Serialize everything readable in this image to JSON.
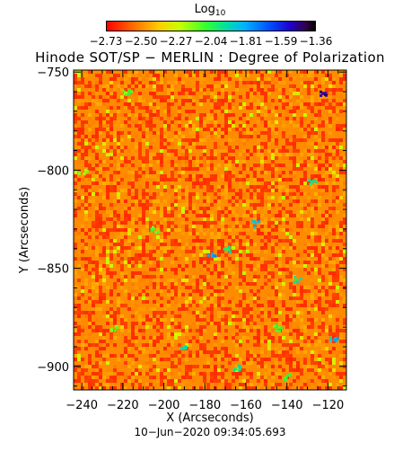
{
  "colorbar": {
    "title_base": "Log",
    "title_sub": "10",
    "tick_labels": [
      "−2.73",
      "−2.50",
      "−2.27",
      "−2.04",
      "−1.81",
      "−1.59",
      "−1.36"
    ],
    "tick_values": [
      -2.73,
      -2.5,
      -2.27,
      -2.04,
      -1.81,
      -1.59,
      -1.36
    ],
    "range": [
      -2.8,
      -1.3
    ]
  },
  "title": "Hinode SOT/SP − MERLIN : Degree of Polarization",
  "date": "10−Jun−2020 09:34:05.693",
  "colors": {
    "background": "#ff8c00",
    "low": "#ff0000",
    "mid": "#ffd000",
    "green": "#33ff33",
    "blue": "#0050ff",
    "dark": "#200040"
  },
  "chart_data": {
    "type": "heatmap",
    "title": "Hinode SOT/SP − MERLIN : Degree of Polarization",
    "xlabel": "X (Arcseconds)",
    "ylabel": "Y (Arcseconds)",
    "xlim": [
      -244,
      -111
    ],
    "ylim": [
      -912,
      -749
    ],
    "x_ticks": [
      -240,
      -220,
      -200,
      -180,
      -160,
      -140,
      -120
    ],
    "y_ticks": [
      -750,
      -800,
      -850,
      -900
    ],
    "x_tick_labels": [
      "−240",
      "−220",
      "−200",
      "−180",
      "−160",
      "−140",
      "−120"
    ],
    "y_tick_labels": [
      "−750",
      "−800",
      "−850",
      "−900"
    ],
    "z_quantity": "log10 degree of polarization",
    "z_range": [
      -2.73,
      -1.36
    ],
    "typical_value": -2.6,
    "features": [
      {
        "x": -122,
        "y": -760,
        "value": -1.36
      },
      {
        "x": -177,
        "y": -842,
        "value": -1.7
      },
      {
        "x": -155,
        "y": -827,
        "value": -1.75
      },
      {
        "x": -118,
        "y": -885,
        "value": -1.75
      },
      {
        "x": -128,
        "y": -805,
        "value": -1.9
      },
      {
        "x": -135,
        "y": -855,
        "value": -1.9
      },
      {
        "x": -218,
        "y": -760,
        "value": -2.04
      },
      {
        "x": -205,
        "y": -830,
        "value": -2.04
      },
      {
        "x": -170,
        "y": -840,
        "value": -1.9
      },
      {
        "x": -145,
        "y": -880,
        "value": -2.04
      },
      {
        "x": -165,
        "y": -900,
        "value": -1.9
      },
      {
        "x": -225,
        "y": -880,
        "value": -2.1
      },
      {
        "x": -190,
        "y": -890,
        "value": -1.9
      },
      {
        "x": -240,
        "y": -800,
        "value": -2.1
      },
      {
        "x": -140,
        "y": -905,
        "value": -2.0
      }
    ]
  }
}
